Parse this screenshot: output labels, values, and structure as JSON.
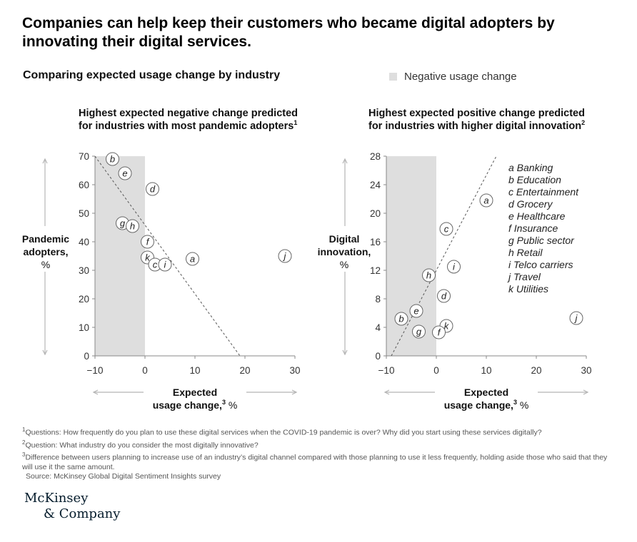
{
  "title": "Companies can help keep their customers who became digital adopters by innovating their digital services.",
  "subtitle": "Comparing expected usage change by industry",
  "legend": {
    "label": "Negative usage change",
    "color": "#dedede"
  },
  "colors": {
    "shade": "#dedede",
    "axis": "#888888",
    "text": "#111111",
    "arrow": "#b5b5b5"
  },
  "industry_legend": [
    "a Banking",
    "b Education",
    "c Entertainment",
    "d Grocery",
    "e Healthcare",
    "f Insurance",
    "g Public sector",
    "h Retail",
    "i Telco carriers",
    "j Travel",
    "k Utilities"
  ],
  "chart_data": [
    {
      "type": "scatter",
      "title": "Highest expected negative change predicted for industries with most pandemic adopters",
      "title_lines": [
        "Highest expected negative change predicted",
        "for industries with most pandemic adopters"
      ],
      "title_sup": "1",
      "ylabel_lines": [
        "Pandemic",
        "adopters,",
        "%"
      ],
      "xlabel_line1": "Expected",
      "xlabel_line2": "usage change,",
      "xlabel_sup": "3",
      "xlabel_unit": " %",
      "xlim": [
        -10,
        30
      ],
      "ylim": [
        0,
        70
      ],
      "xticks": [
        -10,
        0,
        10,
        20,
        30
      ],
      "xtick_labels": [
        "−10",
        "0",
        "10",
        "20",
        "30"
      ],
      "yticks": [
        0,
        10,
        20,
        30,
        40,
        50,
        60,
        70
      ],
      "ytick_labels": [
        "0",
        "10",
        "20",
        "30",
        "40",
        "50",
        "60",
        "70"
      ],
      "shaded_region": {
        "x_from": -10,
        "x_to": 0
      },
      "trendline": [
        [
          -10,
          70
        ],
        [
          19,
          0
        ]
      ],
      "points": [
        {
          "label": "b",
          "x": -6.5,
          "y": 69
        },
        {
          "label": "e",
          "x": -4,
          "y": 64
        },
        {
          "label": "d",
          "x": 1.5,
          "y": 58.5
        },
        {
          "label": "g",
          "x": -4.5,
          "y": 46.5
        },
        {
          "label": "h",
          "x": -2.5,
          "y": 45.5
        },
        {
          "label": "f",
          "x": 0.5,
          "y": 40
        },
        {
          "label": "k",
          "x": 0.5,
          "y": 34.5
        },
        {
          "label": "c",
          "x": 2,
          "y": 32
        },
        {
          "label": "i",
          "x": 4,
          "y": 32
        },
        {
          "label": "a",
          "x": 9.5,
          "y": 34
        },
        {
          "label": "j",
          "x": 28,
          "y": 35
        }
      ]
    },
    {
      "type": "scatter",
      "title": "Highest expected positive change predicted for industries with higher digital innovation",
      "title_lines": [
        "Highest expected positive change predicted",
        "for industries with higher digital innovation"
      ],
      "title_sup": "2",
      "ylabel_lines": [
        "Digital",
        "innovation,",
        "%"
      ],
      "xlabel_line1": "Expected",
      "xlabel_line2": "usage change,",
      "xlabel_sup": "3",
      "xlabel_unit": " %",
      "xlim": [
        -10,
        30
      ],
      "ylim": [
        0,
        28
      ],
      "xticks": [
        -10,
        0,
        10,
        20,
        30
      ],
      "xtick_labels": [
        "−10",
        "0",
        "10",
        "20",
        "30"
      ],
      "yticks": [
        0,
        4,
        8,
        12,
        16,
        20,
        24,
        28
      ],
      "ytick_labels": [
        "0",
        "4",
        "8",
        "12",
        "16",
        "20",
        "24",
        "28"
      ],
      "shaded_region": {
        "x_from": -10,
        "x_to": 0
      },
      "trendline": [
        [
          -9,
          0
        ],
        [
          12,
          28
        ]
      ],
      "points": [
        {
          "label": "a",
          "x": 10,
          "y": 21.8
        },
        {
          "label": "c",
          "x": 2,
          "y": 17.8
        },
        {
          "label": "i",
          "x": 3.5,
          "y": 12.5
        },
        {
          "label": "h",
          "x": -1.5,
          "y": 11.3
        },
        {
          "label": "d",
          "x": 1.5,
          "y": 8.4
        },
        {
          "label": "e",
          "x": -4,
          "y": 6.3
        },
        {
          "label": "b",
          "x": -7,
          "y": 5.2
        },
        {
          "label": "g",
          "x": -3.5,
          "y": 3.4
        },
        {
          "label": "k",
          "x": 2,
          "y": 4.2
        },
        {
          "label": "f",
          "x": 0.5,
          "y": 3.3
        },
        {
          "label": "j",
          "x": 28,
          "y": 5.3
        }
      ]
    }
  ],
  "footnotes": [
    {
      "sup": "1",
      "text": "Questions: How frequently do you plan to use these digital services when the COVID-19 pandemic is over? Why did you start using these services digitally?"
    },
    {
      "sup": "2",
      "text": "Question: What industry do you consider the most digitally innovative?"
    },
    {
      "sup": "3",
      "text": "Difference between users planning to increase use of an industry’s digital channel compared with those planning to use it less frequently, holding aside those who said that they will use it the same amount."
    }
  ],
  "source": "Source: McKinsey Global Digital Sentiment Insights survey",
  "logo": {
    "line1": "McKinsey",
    "line2": "& Company"
  }
}
